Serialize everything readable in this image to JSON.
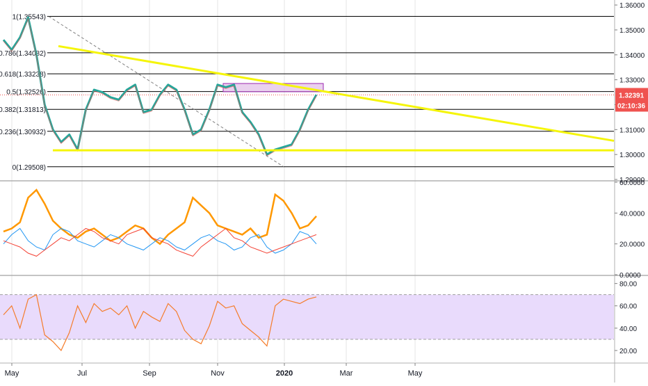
{
  "colors": {
    "price_line": "#26a69a",
    "fib_line": "#000000",
    "trend_line": "#f5f50a",
    "support_line": "#f5f50a",
    "price_label_bg": "#ef5350",
    "dmi_plus": "#2196f3",
    "dmi_minus": "#f44336",
    "adx": "#ff9800",
    "rsi_line": "#f57c2a",
    "rsi_band": "#e9dbfc",
    "grid": "#e6e6e6"
  },
  "chart_data": [
    {
      "type": "line",
      "panel": "price",
      "y_axis_ticks": [
        "1.36000",
        "1.35000",
        "1.34000",
        "1.33000",
        "1.32000",
        "1.31000",
        "1.30000",
        "1.29000"
      ],
      "ylim": [
        1.29,
        1.362
      ],
      "current_price_label": "1.32391",
      "countdown_label": "02:10:36",
      "fib_levels": [
        {
          "label": "1(1.35543)",
          "value": 1.35543
        },
        {
          "label": "0.786(1.34082)",
          "value": 1.34082
        },
        {
          "label": "0.618(1.33238)",
          "value": 1.33238
        },
        {
          "label": "0.5(1.32526)",
          "value": 1.32526
        },
        {
          "label": "0.382(1.31813)",
          "value": 1.31813
        },
        {
          "label": "0.236(1.30932)",
          "value": 1.30932
        },
        {
          "label": "0(1.29508)",
          "value": 1.29508
        }
      ],
      "series": [
        {
          "x": [
            "May 1",
            "May 8",
            "May 15",
            "May 22",
            "Jun 1",
            "Jun 8",
            "Jun 15",
            "Jun 22",
            "Jul 1",
            "Jul 8",
            "Jul 15",
            "Jul 22",
            "Aug 1",
            "Aug 8",
            "Aug 15",
            "Aug 22",
            "Sep 1",
            "Sep 8",
            "Sep 15",
            "Sep 22",
            "Oct 1",
            "Oct 8",
            "Oct 15",
            "Oct 22",
            "Nov 1",
            "Nov 8",
            "Nov 15",
            "Nov 22",
            "Dec 1",
            "Dec 8",
            "Dec 15",
            "Dec 22",
            "Jan 1",
            "Jan 8",
            "Jan 15",
            "Jan 22",
            "Feb 1",
            "Feb 8",
            "Feb 15"
          ],
          "values": [
            1.346,
            1.342,
            1.347,
            1.355,
            1.34,
            1.32,
            1.31,
            1.305,
            1.308,
            1.302,
            1.318,
            1.326,
            1.325,
            1.323,
            1.322,
            1.326,
            1.328,
            1.317,
            1.318,
            1.324,
            1.328,
            1.326,
            1.318,
            1.308,
            1.31,
            1.318,
            1.328,
            1.327,
            1.328,
            1.317,
            1.313,
            1.308,
            1.3,
            1.302,
            1.303,
            1.304,
            1.31,
            1.318,
            1.324
          ]
        }
      ]
    },
    {
      "type": "line",
      "panel": "dmi",
      "y_axis_ticks": [
        "60.0000",
        "40.0000",
        "20.0000",
        "0.0000"
      ],
      "ylim": [
        0,
        60
      ],
      "series": [
        {
          "values": [
            28,
            30,
            34,
            50,
            55,
            46,
            35,
            30,
            26,
            24,
            28,
            30,
            26,
            22,
            24,
            28,
            32,
            30,
            24,
            20,
            26,
            30,
            34,
            50,
            45,
            40,
            32,
            30,
            28,
            26,
            30,
            24,
            26,
            52,
            48,
            40,
            30,
            32,
            38
          ]
        },
        {
          "values": [
            20,
            26,
            30,
            22,
            18,
            16,
            26,
            30,
            28,
            22,
            20,
            18,
            22,
            26,
            24,
            20,
            18,
            16,
            20,
            24,
            22,
            18,
            16,
            20,
            24,
            26,
            22,
            20,
            16,
            18,
            24,
            26,
            18,
            14,
            16,
            20,
            28,
            26,
            20
          ]
        },
        {
          "values": [
            22,
            20,
            18,
            14,
            12,
            16,
            20,
            24,
            22,
            26,
            30,
            28,
            24,
            22,
            20,
            26,
            28,
            30,
            24,
            22,
            20,
            16,
            14,
            12,
            18,
            22,
            26,
            30,
            24,
            22,
            18,
            16,
            14,
            16,
            18,
            20,
            22,
            24,
            26
          ]
        }
      ]
    },
    {
      "type": "line",
      "panel": "rsi",
      "y_axis_ticks": [
        "80.00",
        "60.00",
        "40.00",
        "20.00"
      ],
      "ylim": [
        10,
        86
      ],
      "band": [
        30,
        70
      ],
      "series": [
        {
          "values": [
            52,
            60,
            40,
            66,
            70,
            34,
            28,
            20,
            36,
            60,
            45,
            62,
            55,
            58,
            52,
            60,
            40,
            55,
            50,
            46,
            62,
            55,
            38,
            30,
            26,
            42,
            64,
            58,
            60,
            44,
            38,
            32,
            24,
            60,
            66,
            64,
            62,
            66,
            68
          ]
        }
      ]
    }
  ],
  "x_axis": {
    "labels": [
      "May",
      "Jul",
      "Sep",
      "Nov",
      "2020",
      "Mar",
      "May"
    ]
  }
}
